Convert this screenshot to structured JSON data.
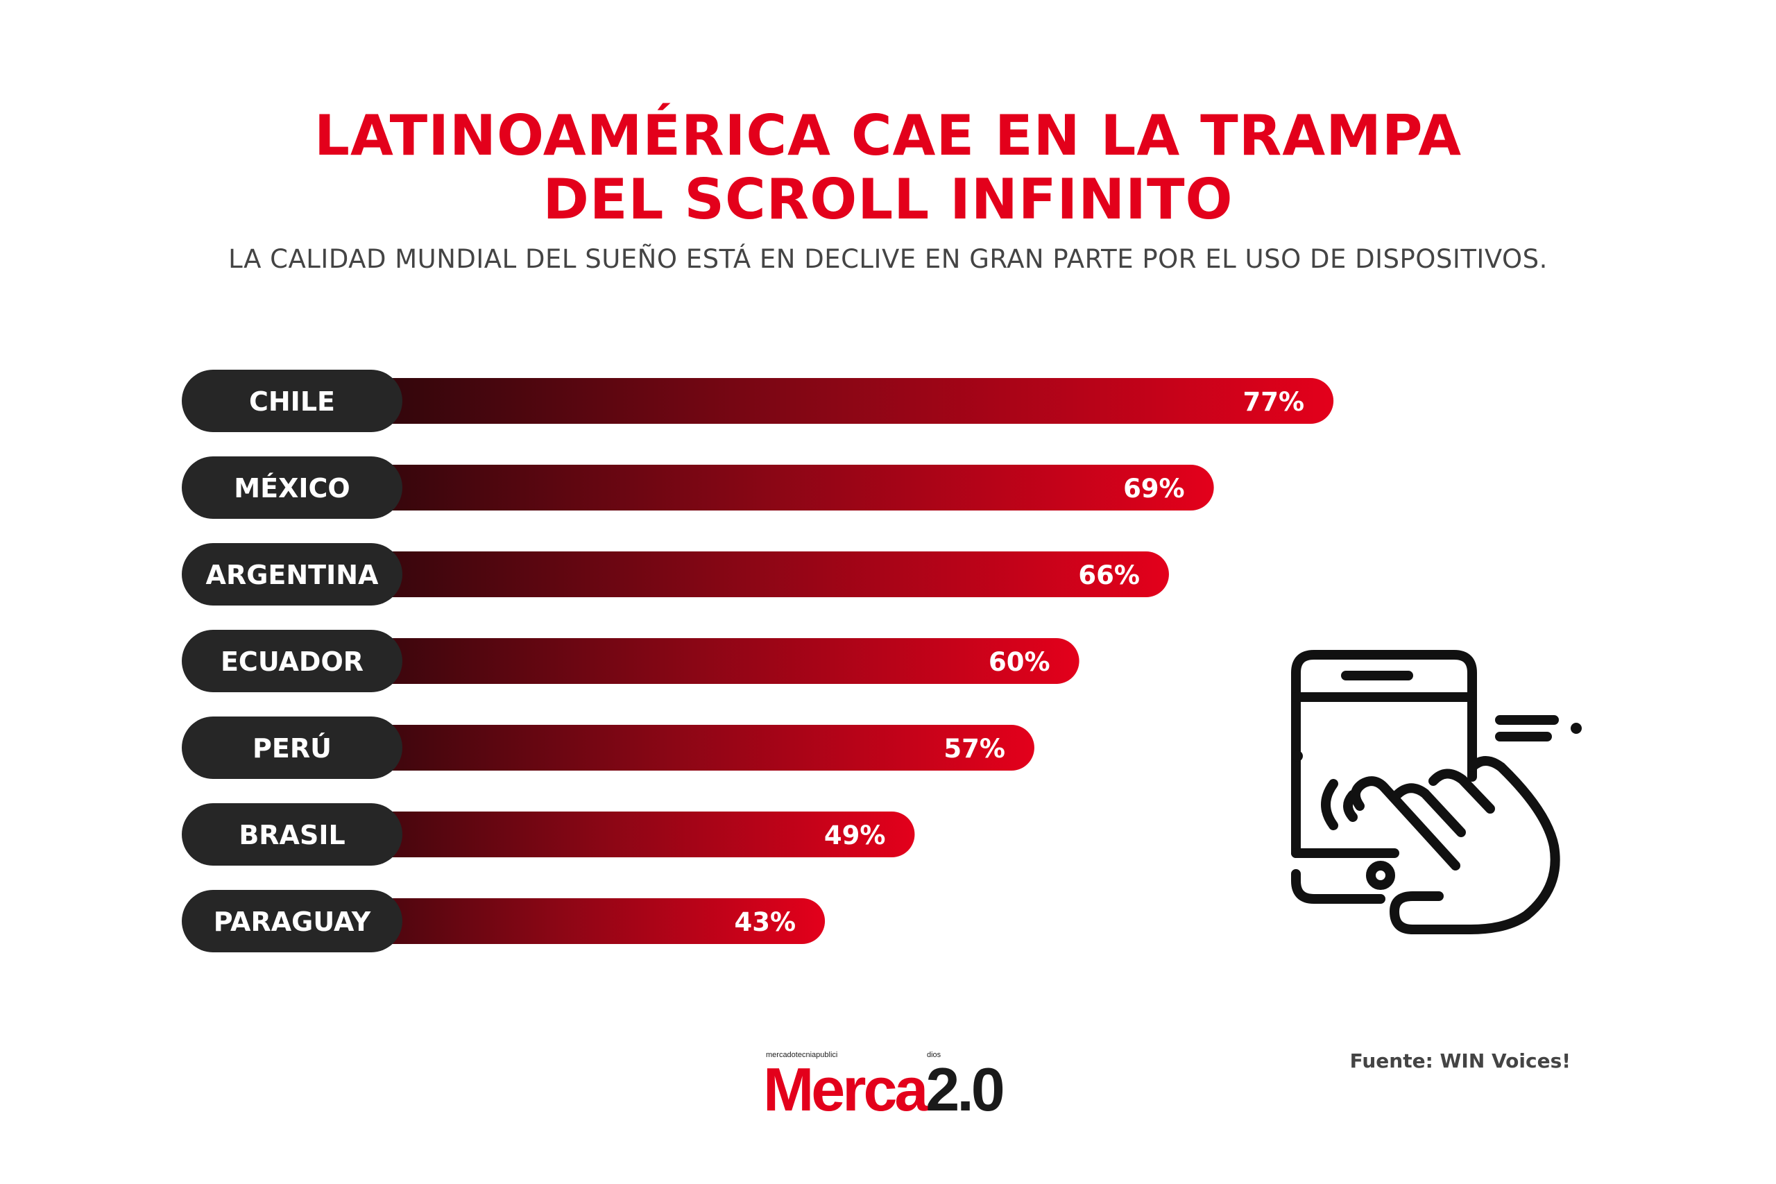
{
  "header": {
    "title_line_1": "LATINOAMÉRICA CAE EN LA TRAMPA",
    "title_line_2": "DEL SCROLL INFINITO",
    "subtitle": "LA CALIDAD MUNDIAL DEL SUEÑO ESTÁ EN DECLIVE EN GRAN PARTE POR EL USO DE DISPOSITIVOS."
  },
  "chart_data": {
    "type": "bar",
    "orientation": "horizontal",
    "categories": [
      "CHILE",
      "MÉXICO",
      "ARGENTINA",
      "ECUADOR",
      "PERÚ",
      "BRASIL",
      "PARAGUAY"
    ],
    "values": [
      77,
      69,
      66,
      60,
      57,
      49,
      43
    ],
    "value_labels": [
      "77%",
      "69%",
      "66%",
      "60%",
      "57%",
      "49%",
      "43%"
    ],
    "unit": "%",
    "xlim": [
      0,
      100
    ],
    "grid": false,
    "colors": {
      "bar_start": "#120608",
      "bar_end": "#e3001b",
      "label_pill": "#262626"
    }
  },
  "footer": {
    "source": "Fuente: WIN Voices!",
    "logo_tagline_left": "mercadotecniapublici",
    "logo_tagline_right": "dios",
    "logo_word_1": "Merca",
    "logo_word_2": "2.0"
  },
  "icons": {
    "illustration": "smartphone-scroll-hand-icon"
  },
  "colors": {
    "accent": "#e3001b",
    "text_dark": "#444444"
  }
}
